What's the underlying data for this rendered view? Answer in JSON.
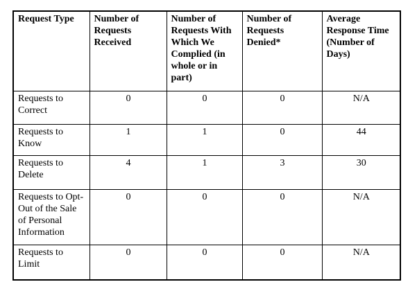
{
  "table": {
    "columns": [
      "Request Type",
      "Number of Requests Received",
      "Number of Requests With Which We Complied (in whole or in part)",
      "Number of Requests Denied*",
      "Average Response Time (Number of Days)"
    ],
    "rows": [
      {
        "label": "Requests to Correct",
        "received": "0",
        "complied": "0",
        "denied": "0",
        "avg_response": "N/A"
      },
      {
        "label": "Requests to Know",
        "received": "1",
        "complied": "1",
        "denied": "0",
        "avg_response": "44"
      },
      {
        "label": "Requests to Delete",
        "received": "4",
        "complied": "1",
        "denied": "3",
        "avg_response": "30"
      },
      {
        "label": "Requests to Opt-Out of the Sale of Personal Information",
        "received": "0",
        "complied": "0",
        "denied": "0",
        "avg_response": "N/A"
      },
      {
        "label": "Requests to Limit",
        "received": "0",
        "complied": "0",
        "denied": "0",
        "avg_response": "N/A"
      }
    ],
    "colors": {
      "border": "#000000",
      "background": "#ffffff",
      "text": "#000000"
    }
  }
}
